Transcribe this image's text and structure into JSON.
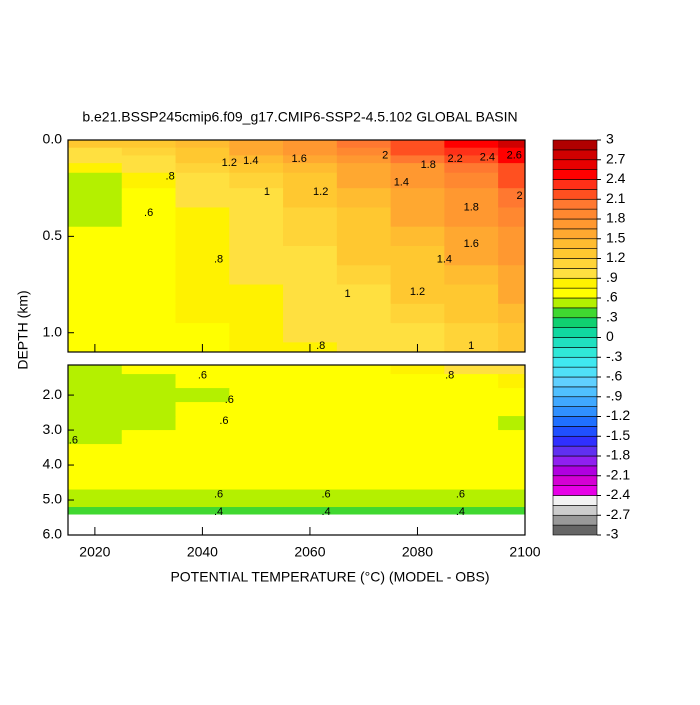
{
  "chart_data": {
    "type": "contour",
    "title": "b.e21.BSSP245cmip6.f09_g17.CMIP6-SSP2-4.5.102 GLOBAL BASIN",
    "xlabel": "POTENTIAL TEMPERATURE (°C) (MODEL - OBS)",
    "ylabel": "DEPTH (km)",
    "xlim": [
      2015,
      2100
    ],
    "xticks": [
      2020,
      2040,
      2060,
      2080,
      2100
    ],
    "clim": [
      -3,
      3
    ],
    "colors": [
      "#666666",
      "#999999",
      "#cccccc",
      "#f2f2f2",
      "#e600e6",
      "#d400d4",
      "#b000e0",
      "#9020f0",
      "#6030f0",
      "#3030ff",
      "#2050ff",
      "#2070ff",
      "#3090ff",
      "#40a8ff",
      "#50c0ff",
      "#60d0ff",
      "#50e0f8",
      "#40e8f0",
      "#30e8d8",
      "#20e0c0",
      "#10d8a0",
      "#10d070",
      "#40d830",
      "#b4f000",
      "#ffff00",
      "#fff200",
      "#ffe040",
      "#ffd438",
      "#ffc830",
      "#ffbc30",
      "#ffa830",
      "#ff9830",
      "#ff8830",
      "#ff7830",
      "#ff5020",
      "#ff3018",
      "#ff0000",
      "#e80000",
      "#d00000",
      "#b00000"
    ],
    "cbar_ticks": [
      3,
      2.7,
      2.4,
      2.1,
      1.8,
      1.5,
      1.2,
      {
        "value": 0.9,
        "label": ".9"
      },
      {
        "value": 0.6,
        "label": ".6"
      },
      {
        "value": 0.3,
        "label": ".3"
      },
      0,
      {
        "value": -0.3,
        "label": "-.3"
      },
      {
        "value": -0.6,
        "label": "-.6"
      },
      {
        "value": -0.9,
        "label": "-.9"
      },
      -1.2,
      -1.5,
      -1.8,
      -2.1,
      -2.4,
      -2.7,
      -3
    ],
    "panels": [
      {
        "ylim": [
          0,
          1.1
        ],
        "yticks": [
          {
            "value": 0,
            "label": "0.0"
          },
          0.5,
          {
            "value": 1,
            "label": "1.0"
          }
        ],
        "xedges": [
          2015,
          2025,
          2035,
          2045,
          2055,
          2065,
          2075,
          2085,
          2095,
          2100
        ],
        "yedges": [
          0,
          0.04,
          0.08,
          0.12,
          0.17,
          0.25,
          0.35,
          0.45,
          0.55,
          0.65,
          0.75,
          0.85,
          0.95,
          1.05,
          1.1
        ],
        "z": [
          [
            1.2,
            1.2,
            1.4,
            1.6,
            1.8,
            2.0,
            2.2,
            2.5,
            2.7
          ],
          [
            1.0,
            1.1,
            1.3,
            1.5,
            1.7,
            1.9,
            2.1,
            2.3,
            2.5
          ],
          [
            0.9,
            1.0,
            1.2,
            1.4,
            1.6,
            1.8,
            2.0,
            2.2,
            2.4
          ],
          [
            0.8,
            0.9,
            1.1,
            1.2,
            1.4,
            1.6,
            1.8,
            2.0,
            2.2
          ],
          [
            0.55,
            0.8,
            0.9,
            1.1,
            1.3,
            1.5,
            1.7,
            1.9,
            2.1
          ],
          [
            0.5,
            0.7,
            0.9,
            1.0,
            1.2,
            1.4,
            1.6,
            1.8,
            2.0
          ],
          [
            0.55,
            0.7,
            0.8,
            1.0,
            1.1,
            1.3,
            1.5,
            1.7,
            1.9
          ],
          [
            0.6,
            0.7,
            0.8,
            0.9,
            1.1,
            1.2,
            1.4,
            1.6,
            1.8
          ],
          [
            0.7,
            0.7,
            0.8,
            0.9,
            1.0,
            1.2,
            1.3,
            1.5,
            1.7
          ],
          [
            0.7,
            0.7,
            0.8,
            0.9,
            1.0,
            1.1,
            1.3,
            1.4,
            1.6
          ],
          [
            0.7,
            0.7,
            0.8,
            0.8,
            0.9,
            1.0,
            1.2,
            1.3,
            1.5
          ],
          [
            0.7,
            0.7,
            0.8,
            0.8,
            0.9,
            1.0,
            1.1,
            1.2,
            1.4
          ],
          [
            0.7,
            0.7,
            0.7,
            0.8,
            0.9,
            0.9,
            1.0,
            1.1,
            1.3
          ],
          [
            0.7,
            0.7,
            0.7,
            0.8,
            0.8,
            0.9,
            1.0,
            1.1,
            1.2
          ]
        ]
      },
      {
        "ylim": [
          1.14,
          6
        ],
        "yticks": [
          {
            "value": 2,
            "label": "2.0"
          },
          {
            "value": 3,
            "label": "3.0"
          },
          {
            "value": 4,
            "label": "4.0"
          },
          {
            "value": 5,
            "label": "5.0"
          },
          {
            "value": 6,
            "label": "6.0"
          }
        ],
        "xedges": [
          2015,
          2025,
          2035,
          2045,
          2055,
          2065,
          2075,
          2085,
          2095,
          2100
        ],
        "yedges": [
          1.14,
          1.4,
          1.8,
          2.2,
          2.6,
          3.0,
          3.4,
          4.0,
          4.7,
          4.9,
          5.2,
          5.4
        ],
        "z": [
          [
            0.55,
            0.6,
            0.7,
            0.7,
            0.7,
            0.7,
            0.8,
            0.9,
            0.9
          ],
          [
            0.55,
            0.55,
            0.7,
            0.7,
            0.7,
            0.7,
            0.7,
            0.7,
            0.8
          ],
          [
            0.55,
            0.55,
            0.55,
            0.7,
            0.7,
            0.7,
            0.7,
            0.7,
            0.7
          ],
          [
            0.55,
            0.55,
            0.7,
            0.7,
            0.7,
            0.7,
            0.7,
            0.7,
            0.7
          ],
          [
            0.55,
            0.55,
            0.7,
            0.7,
            0.7,
            0.7,
            0.7,
            0.7,
            0.55
          ],
          [
            0.55,
            0.7,
            0.7,
            0.7,
            0.7,
            0.7,
            0.7,
            0.7,
            0.7
          ],
          [
            0.7,
            0.7,
            0.7,
            0.7,
            0.7,
            0.7,
            0.7,
            0.7,
            0.7
          ],
          [
            0.7,
            0.7,
            0.7,
            0.7,
            0.7,
            0.7,
            0.7,
            0.7,
            0.7
          ],
          [
            0.55,
            0.55,
            0.55,
            0.55,
            0.55,
            0.55,
            0.55,
            0.55,
            0.55
          ],
          [
            0.5,
            0.5,
            0.5,
            0.5,
            0.5,
            0.5,
            0.5,
            0.5,
            0.5
          ],
          [
            0.35,
            0.35,
            0.35,
            0.35,
            0.35,
            0.35,
            0.35,
            0.35,
            0.35
          ]
        ]
      }
    ],
    "contour_labels": [
      {
        "panel": 0,
        "x": 2034,
        "y": 0.19,
        "text": ".8"
      },
      {
        "panel": 0,
        "x": 2030,
        "y": 0.38,
        "text": ".6"
      },
      {
        "panel": 0,
        "x": 2045,
        "y": 0.12,
        "text": "1.2"
      },
      {
        "panel": 0,
        "x": 2049,
        "y": 0.11,
        "text": "1.4"
      },
      {
        "panel": 0,
        "x": 2058,
        "y": 0.1,
        "text": "1.6"
      },
      {
        "panel": 0,
        "x": 2074,
        "y": 0.08,
        "text": "2"
      },
      {
        "panel": 0,
        "x": 2082,
        "y": 0.13,
        "text": "1.8"
      },
      {
        "panel": 0,
        "x": 2087,
        "y": 0.1,
        "text": "2.2"
      },
      {
        "panel": 0,
        "x": 2093,
        "y": 0.09,
        "text": "2.4"
      },
      {
        "panel": 0,
        "x": 2098,
        "y": 0.08,
        "text": "2.6"
      },
      {
        "panel": 0,
        "x": 2077,
        "y": 0.22,
        "text": "1.4"
      },
      {
        "panel": 0,
        "x": 2052,
        "y": 0.27,
        "text": "1"
      },
      {
        "panel": 0,
        "x": 2062,
        "y": 0.27,
        "text": "1.2"
      },
      {
        "panel": 0,
        "x": 2099,
        "y": 0.29,
        "text": "2"
      },
      {
        "panel": 0,
        "x": 2090,
        "y": 0.35,
        "text": "1.8"
      },
      {
        "panel": 0,
        "x": 2090,
        "y": 0.54,
        "text": "1.6"
      },
      {
        "panel": 0,
        "x": 2085,
        "y": 0.62,
        "text": "1.4"
      },
      {
        "panel": 0,
        "x": 2080,
        "y": 0.79,
        "text": "1.2"
      },
      {
        "panel": 0,
        "x": 2067,
        "y": 0.8,
        "text": "1"
      },
      {
        "panel": 0,
        "x": 2043,
        "y": 0.62,
        "text": ".8"
      },
      {
        "panel": 0,
        "x": 2062,
        "y": 1.07,
        "text": ".8"
      },
      {
        "panel": 0,
        "x": 2090,
        "y": 1.07,
        "text": "1"
      },
      {
        "panel": 1,
        "x": 2040,
        "y": 1.45,
        "text": ".6"
      },
      {
        "panel": 1,
        "x": 2086,
        "y": 1.45,
        "text": ".8"
      },
      {
        "panel": 1,
        "x": 2045,
        "y": 2.15,
        "text": ".6"
      },
      {
        "panel": 1,
        "x": 2044,
        "y": 2.75,
        "text": ".6"
      },
      {
        "panel": 1,
        "x": 2016,
        "y": 3.3,
        "text": ".6"
      },
      {
        "panel": 1,
        "x": 2043,
        "y": 4.85,
        "text": ".6"
      },
      {
        "panel": 1,
        "x": 2063,
        "y": 4.85,
        "text": ".6"
      },
      {
        "panel": 1,
        "x": 2088,
        "y": 4.85,
        "text": ".6"
      },
      {
        "panel": 1,
        "x": 2043,
        "y": 5.35,
        "text": ".4"
      },
      {
        "panel": 1,
        "x": 2063,
        "y": 5.35,
        "text": ".4"
      },
      {
        "panel": 1,
        "x": 2088,
        "y": 5.35,
        "text": ".4"
      }
    ]
  }
}
